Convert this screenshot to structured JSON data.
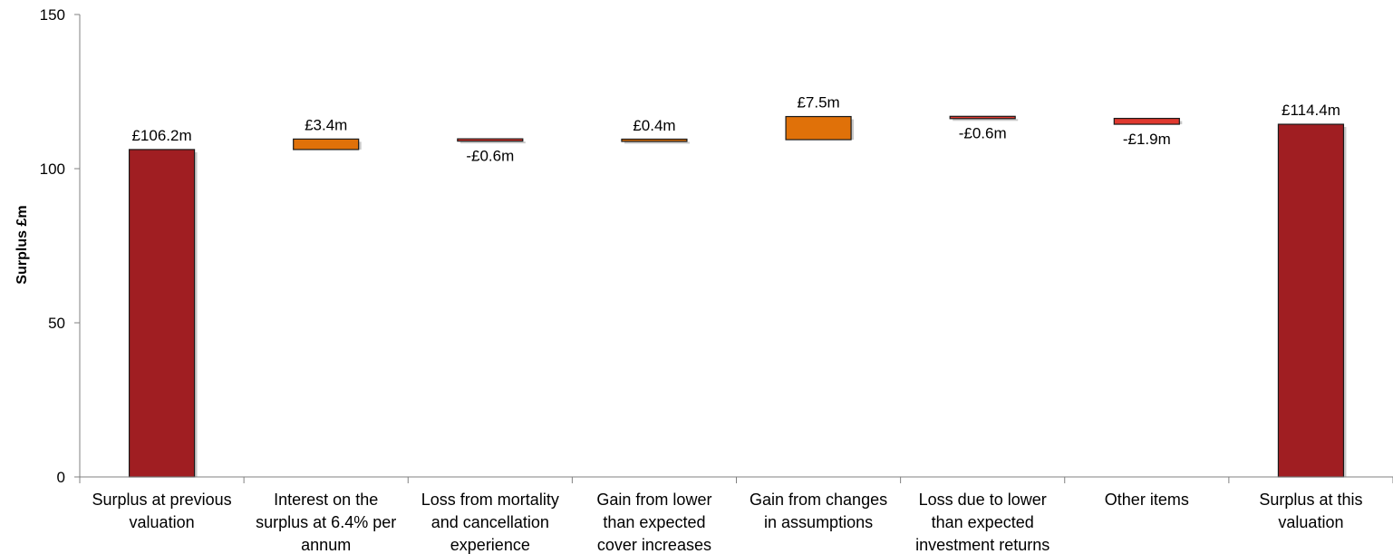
{
  "chart_data": {
    "type": "bar",
    "subtype": "waterfall",
    "ylabel": "Surplus £m",
    "ylim": [
      0,
      150
    ],
    "yticks": [
      0,
      50,
      100,
      150
    ],
    "grid": false,
    "legend": "none",
    "categories": [
      [
        "Surplus at previous",
        "valuation"
      ],
      [
        "Interest on the",
        "surplus at 6.4% per",
        "annum"
      ],
      [
        "Loss from mortality",
        "and cancellation",
        "experience"
      ],
      [
        "Gain from lower",
        "than expected",
        "cover increases"
      ],
      [
        "Gain from changes",
        "in assumptions"
      ],
      [
        "Loss due to lower",
        "than expected",
        "investment returns"
      ],
      [
        "Other items"
      ],
      [
        "Surplus at this",
        "valuation"
      ]
    ],
    "steps": [
      {
        "kind": "total",
        "value": 106.2,
        "label": "£106.2m"
      },
      {
        "kind": "delta",
        "value": 3.4,
        "label": "£3.4m"
      },
      {
        "kind": "delta",
        "value": -0.6,
        "label": "-£0.6m"
      },
      {
        "kind": "delta",
        "value": 0.4,
        "label": "£0.4m"
      },
      {
        "kind": "delta",
        "value": 7.5,
        "label": "£7.5m"
      },
      {
        "kind": "delta",
        "value": -0.6,
        "label": "-£0.6m"
      },
      {
        "kind": "delta",
        "value": -1.9,
        "label": "-£1.9m"
      },
      {
        "kind": "total",
        "value": 114.4,
        "label": "£114.4m"
      }
    ],
    "colors": {
      "total": "#A01E22",
      "increase": "#E07109",
      "decrease": "#E0392F",
      "axis": "#808080",
      "edge": "#1a1a1a",
      "shadow": "#b8b8b8"
    }
  }
}
